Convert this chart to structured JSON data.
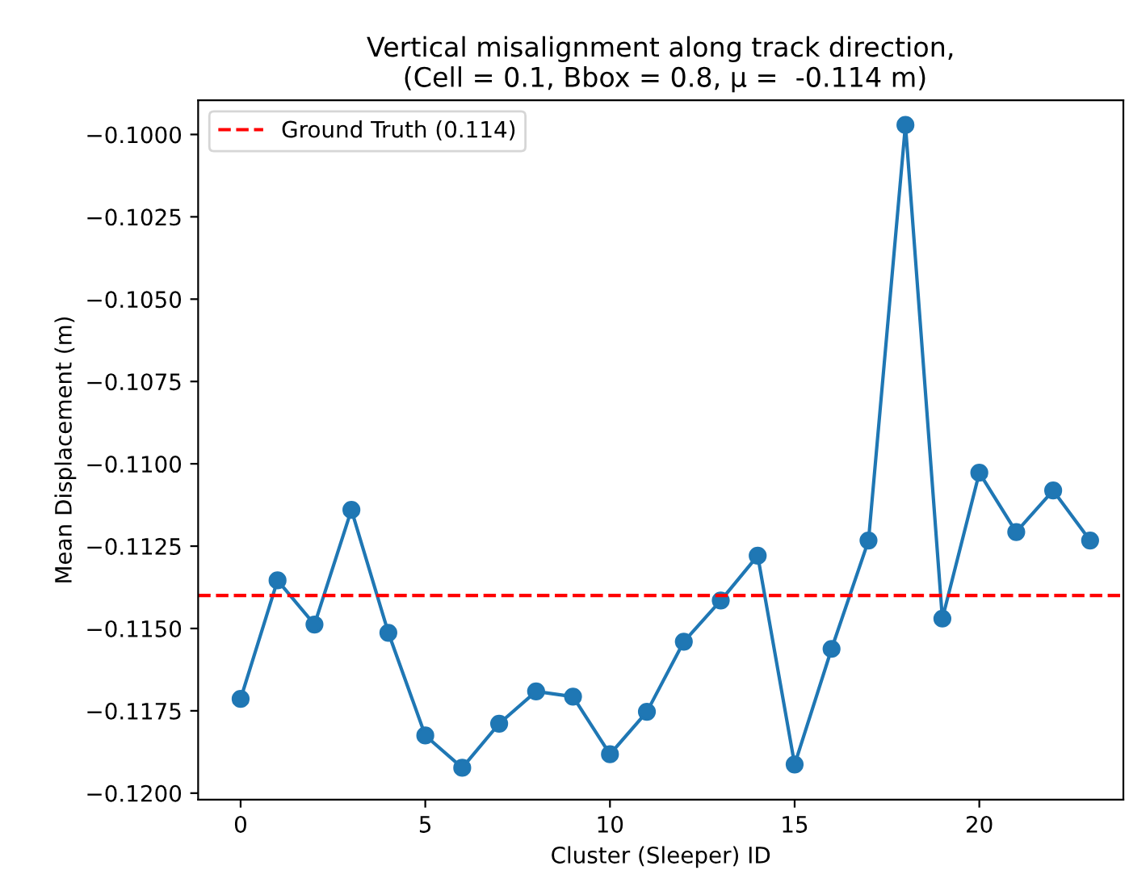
{
  "chart_data": {
    "type": "line",
    "title": "Vertical misalignment along track direction,\n (Cell = 0.1, Bbox = 0.8, μ =  -0.114 m)",
    "xlabel": "Cluster (Sleeper) ID",
    "ylabel": "Mean Displacement (m)",
    "x": [
      0,
      1,
      2,
      3,
      4,
      5,
      6,
      7,
      8,
      9,
      10,
      11,
      12,
      13,
      14,
      15,
      16,
      17,
      18,
      19,
      20,
      21,
      22,
      23
    ],
    "series": [
      {
        "color": "#1f77b4",
        "values": [
          -0.11714,
          -0.11354,
          -0.11488,
          -0.1114,
          -0.11513,
          -0.11825,
          -0.11923,
          -0.11789,
          -0.11691,
          -0.11707,
          -0.11882,
          -0.11753,
          -0.1154,
          -0.11415,
          -0.11279,
          -0.11913,
          -0.11562,
          -0.11233,
          -0.09971,
          -0.1147,
          -0.11027,
          -0.11207,
          -0.11081,
          -0.11233
        ]
      }
    ],
    "marker": "circle",
    "line_style": "solid",
    "ref_lines": [
      {
        "axis": "y",
        "value": -0.114,
        "label": "Ground Truth (0.114)",
        "color": "#ff0000",
        "line_style": "dashed"
      }
    ],
    "xlim": [
      -1.15,
      23.9
    ],
    "xticks": [
      0,
      5,
      10,
      15,
      20
    ],
    "ylim": [
      -0.1202,
      -0.09896
    ],
    "yticks": [
      {
        "value": -0.12,
        "label": "−0.1200"
      },
      {
        "value": -0.1175,
        "label": "−0.1175"
      },
      {
        "value": -0.115,
        "label": "−0.1150"
      },
      {
        "value": -0.1125,
        "label": "−0.1125"
      },
      {
        "value": -0.11,
        "label": "−0.1100"
      },
      {
        "value": -0.1075,
        "label": "−0.1075"
      },
      {
        "value": -0.105,
        "label": "−0.1050"
      },
      {
        "value": -0.1025,
        "label": "−0.1025"
      },
      {
        "value": -0.1,
        "label": "−0.1000"
      }
    ],
    "legend": "top left",
    "grid": false
  }
}
